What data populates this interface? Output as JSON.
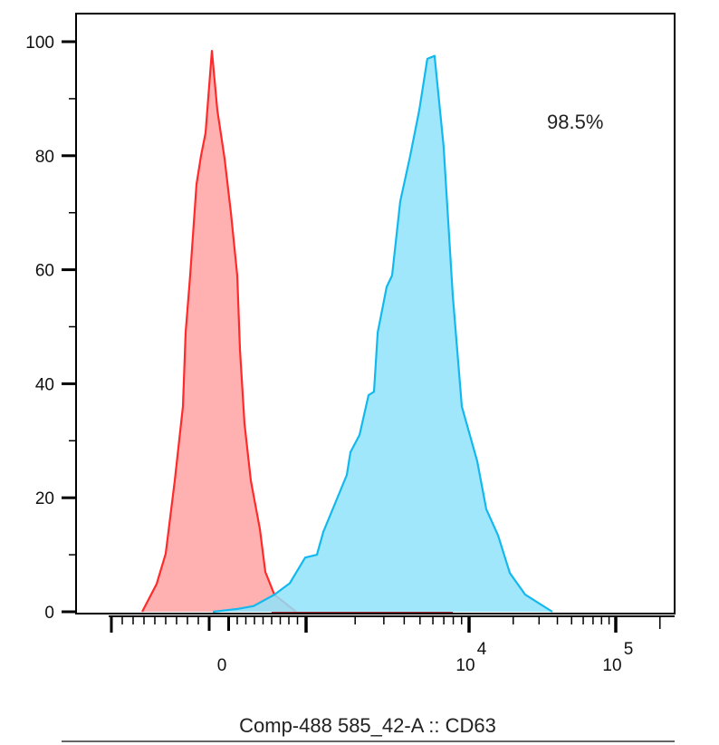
{
  "chart_data": {
    "type": "area",
    "title": "",
    "xlabel": "Comp-488 585_42-A :: CD63",
    "ylabel": "",
    "x_scale": "biexponential",
    "ylim": [
      0,
      100
    ],
    "y_ticks": [
      "0",
      "20",
      "40",
      "60",
      "80",
      "100"
    ],
    "x_ticks": [
      {
        "value": 0,
        "label": "0",
        "exp": ""
      },
      {
        "value": 10000,
        "label": "10",
        "exp": "4"
      },
      {
        "value": 100000,
        "label": "10",
        "exp": "5"
      }
    ],
    "grid": false,
    "annotation": "98.5%",
    "series": [
      {
        "color": "#ff2a2a",
        "fill": "#ffa8a8",
        "x": [
          -717,
          -583,
          -500,
          -417,
          -342,
          -317,
          -275,
          -217,
          -175,
          -133,
          -75,
          -25,
          53,
          126,
          200,
          232,
          284,
          358,
          463,
          526,
          632,
          884
        ],
        "y": [
          0,
          4.9,
          10.2,
          23,
          36,
          49,
          59,
          75,
          80,
          84,
          98.4,
          88,
          79.5,
          70,
          59,
          46,
          33,
          23,
          14.5,
          7,
          3,
          0
        ]
      },
      {
        "color": "#12b8ee",
        "fill": "#8fe3fb",
        "x": [
          -67,
          200,
          389,
          632,
          811,
          989,
          1166,
          1275,
          1506,
          1778,
          1871,
          2128,
          2417,
          2610,
          2750,
          3122,
          3371,
          3783,
          4355,
          4946,
          5546,
          6146,
          6985,
          7943,
          9025,
          11370,
          13100,
          15770,
          18970,
          24150,
          37000
        ],
        "y": [
          0,
          0.5,
          1,
          3,
          5,
          9.5,
          10,
          14,
          19,
          24,
          28,
          31,
          38,
          38.6,
          49,
          57,
          59,
          72,
          80,
          88,
          97,
          97.5,
          81.6,
          55.5,
          36,
          26.4,
          18,
          13.4,
          6.8,
          3,
          0
        ]
      }
    ]
  }
}
